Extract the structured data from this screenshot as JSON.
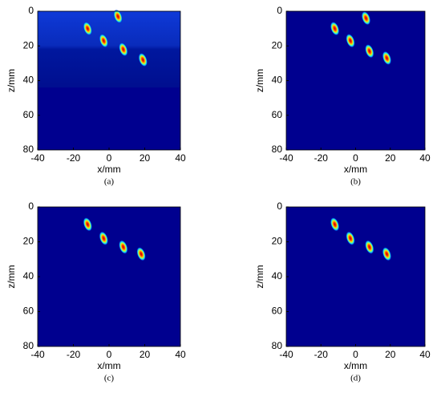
{
  "chart_data": [
    {
      "type": "spots",
      "caption": "(a)",
      "xlabel": "x/mm",
      "ylabel": "z/mm",
      "x": [
        -12,
        -3,
        8,
        19,
        5
      ],
      "values": [
        10,
        17,
        22,
        28,
        3
      ],
      "xlim": [
        -40,
        40
      ],
      "ylim": [
        0,
        80
      ],
      "yreverse": true,
      "xticks": [
        -40,
        -20,
        0,
        20,
        40
      ],
      "yticks": [
        0,
        20,
        40,
        60,
        80
      ],
      "near_field_noise": true
    },
    {
      "type": "spots",
      "caption": "(b)",
      "xlabel": "x/mm",
      "ylabel": "z/mm",
      "x": [
        -12,
        -3,
        8,
        18,
        6
      ],
      "values": [
        10,
        17,
        23,
        27,
        4
      ],
      "xlim": [
        -40,
        40
      ],
      "ylim": [
        0,
        80
      ],
      "yreverse": true,
      "xticks": [
        -40,
        -20,
        0,
        20,
        40
      ],
      "yticks": [
        0,
        20,
        40,
        60,
        80
      ],
      "near_field_noise": false
    },
    {
      "type": "spots",
      "caption": "(c)",
      "xlabel": "x/mm",
      "ylabel": "z/mm",
      "x": [
        -12,
        -3,
        8,
        18
      ],
      "values": [
        10,
        18,
        23,
        27
      ],
      "xlim": [
        -40,
        40
      ],
      "ylim": [
        0,
        80
      ],
      "yreverse": true,
      "xticks": [
        -40,
        -20,
        0,
        20,
        40
      ],
      "yticks": [
        0,
        20,
        40,
        60,
        80
      ],
      "near_field_noise": false
    },
    {
      "type": "spots",
      "caption": "(d)",
      "xlabel": "x/mm",
      "ylabel": "z/mm",
      "x": [
        -12,
        -3,
        8,
        18
      ],
      "values": [
        10,
        18,
        23,
        27
      ],
      "xlim": [
        -40,
        40
      ],
      "ylim": [
        0,
        80
      ],
      "yreverse": true,
      "xticks": [
        -40,
        -20,
        0,
        20,
        40
      ],
      "yticks": [
        0,
        20,
        40,
        60,
        80
      ],
      "near_field_noise": false
    }
  ]
}
